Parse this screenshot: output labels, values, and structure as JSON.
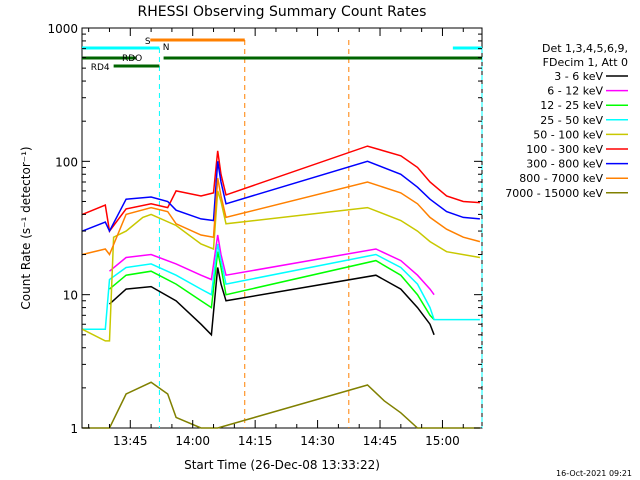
{
  "chart_data": {
    "type": "line",
    "title": "RHESSI Observing Summary Count Rates",
    "xlabel": "Start Time (26-Dec-08 13:33:22)",
    "ylabel": "Count Rate (s⁻¹ detector⁻¹)",
    "y_scale": "log",
    "ylim": [
      1,
      1000
    ],
    "xlim_minutes_after_1330": [
      3.4,
      99.5
    ],
    "x_tick_labels": [
      "13:45",
      "14:00",
      "14:15",
      "14:30",
      "14:45",
      "15:00"
    ],
    "y_tick_labels": [
      "1",
      "10",
      "100",
      "1000"
    ],
    "legend_header": [
      "Det 1,3,4,5,6,9,",
      "FDecim 1, Att 0"
    ],
    "legend_position": "right",
    "grid": false,
    "footer_timestamp": "16-Oct-2021 09:21",
    "flags": [
      {
        "label": "N",
        "color": "#00ffff",
        "segments": [
          [
            3.4,
            22
          ],
          [
            92.5,
            99.5
          ]
        ]
      },
      {
        "label": "RDO",
        "color": "#006400",
        "segments": [
          [
            3.4,
            16.5
          ],
          [
            23,
            99.5
          ]
        ]
      },
      {
        "label": "RD4",
        "color": "#006400",
        "segments": [
          [
            11,
            22
          ]
        ]
      },
      {
        "label": "S",
        "color": "#ff8000",
        "segments": [
          [
            19.8,
            42.5
          ]
        ]
      }
    ],
    "series": [
      {
        "name": "3 - 6 keV",
        "color": "#000000",
        "points": [
          [
            10,
            8.5
          ],
          [
            14,
            11
          ],
          [
            20,
            11.5
          ],
          [
            26,
            9
          ],
          [
            32,
            6
          ],
          [
            34.5,
            5
          ],
          [
            36,
            16
          ],
          [
            36.8,
            12
          ],
          [
            38,
            9
          ],
          [
            74,
            14
          ],
          [
            80,
            11
          ],
          [
            84,
            8
          ],
          [
            87,
            6
          ],
          [
            88,
            5
          ]
        ]
      },
      {
        "name": "6 - 12 keV",
        "color": "#ff00ff",
        "points": [
          [
            10,
            15
          ],
          [
            14,
            19
          ],
          [
            20,
            20
          ],
          [
            26,
            17
          ],
          [
            32,
            14
          ],
          [
            34.5,
            13
          ],
          [
            36,
            28
          ],
          [
            36.8,
            20
          ],
          [
            38,
            14
          ],
          [
            74,
            22
          ],
          [
            80,
            18
          ],
          [
            84,
            14
          ],
          [
            87,
            11
          ],
          [
            88,
            10
          ]
        ]
      },
      {
        "name": "12 - 25 keV",
        "color": "#00ff00",
        "points": [
          [
            10,
            11
          ],
          [
            14,
            14
          ],
          [
            20,
            15
          ],
          [
            26,
            12
          ],
          [
            32,
            9
          ],
          [
            34.5,
            8
          ],
          [
            36,
            21
          ],
          [
            36.8,
            16
          ],
          [
            38,
            10
          ],
          [
            74,
            18
          ],
          [
            80,
            14
          ],
          [
            84,
            10
          ],
          [
            87,
            7
          ],
          [
            88,
            6.5
          ]
        ]
      },
      {
        "name": "25 - 50 keV",
        "color": "#00ffff",
        "points": [
          [
            3.5,
            5.5
          ],
          [
            9,
            5.5
          ],
          [
            10,
            13
          ],
          [
            14,
            16
          ],
          [
            20,
            17
          ],
          [
            26,
            14
          ],
          [
            32,
            11
          ],
          [
            34.5,
            10
          ],
          [
            36,
            24
          ],
          [
            36.8,
            18
          ],
          [
            38,
            12
          ],
          [
            74,
            20
          ],
          [
            80,
            16
          ],
          [
            84,
            12
          ],
          [
            87,
            8
          ],
          [
            88,
            6.5
          ],
          [
            99,
            6.5
          ]
        ]
      },
      {
        "name": "50 - 100 keV",
        "color": "#c8c800",
        "points": [
          [
            3.5,
            5.5
          ],
          [
            9,
            4.5
          ],
          [
            10,
            4.5
          ],
          [
            11,
            27
          ],
          [
            14,
            30
          ],
          [
            18,
            38
          ],
          [
            20,
            40
          ],
          [
            26,
            33
          ],
          [
            32,
            24
          ],
          [
            35,
            22
          ],
          [
            36,
            60
          ],
          [
            36.8,
            50
          ],
          [
            38,
            34
          ],
          [
            72,
            45
          ],
          [
            80,
            36
          ],
          [
            84,
            30
          ],
          [
            87,
            25
          ],
          [
            91,
            21
          ],
          [
            99,
            19
          ]
        ]
      },
      {
        "name": "100 - 300 keV",
        "color": "#ff0000",
        "points": [
          [
            3.5,
            40
          ],
          [
            9,
            47
          ],
          [
            10,
            30
          ],
          [
            14,
            44
          ],
          [
            20,
            48
          ],
          [
            24,
            45
          ],
          [
            26,
            60
          ],
          [
            32,
            55
          ],
          [
            35,
            58
          ],
          [
            36,
            120
          ],
          [
            36.8,
            80
          ],
          [
            38,
            56
          ],
          [
            72,
            130
          ],
          [
            80,
            110
          ],
          [
            84,
            90
          ],
          [
            87,
            70
          ],
          [
            91,
            55
          ],
          [
            95,
            50
          ],
          [
            99,
            49
          ]
        ]
      },
      {
        "name": "300 - 800 keV",
        "color": "#0000ff",
        "points": [
          [
            3.5,
            30
          ],
          [
            9,
            35
          ],
          [
            10,
            30
          ],
          [
            14,
            52
          ],
          [
            20,
            54
          ],
          [
            24,
            50
          ],
          [
            26,
            43
          ],
          [
            32,
            37
          ],
          [
            35,
            36
          ],
          [
            36,
            100
          ],
          [
            36.8,
            70
          ],
          [
            38,
            48
          ],
          [
            72,
            100
          ],
          [
            80,
            80
          ],
          [
            84,
            64
          ],
          [
            87,
            52
          ],
          [
            91,
            42
          ],
          [
            95,
            38
          ],
          [
            99,
            37
          ]
        ]
      },
      {
        "name": "800 - 7000 keV",
        "color": "#ff8000",
        "points": [
          [
            3.5,
            20
          ],
          [
            9,
            22
          ],
          [
            10,
            20
          ],
          [
            14,
            40
          ],
          [
            20,
            45
          ],
          [
            24,
            42
          ],
          [
            26,
            34
          ],
          [
            32,
            28
          ],
          [
            35,
            27
          ],
          [
            36,
            75
          ],
          [
            36.8,
            55
          ],
          [
            38,
            38
          ],
          [
            72,
            70
          ],
          [
            80,
            58
          ],
          [
            84,
            48
          ],
          [
            87,
            38
          ],
          [
            91,
            31
          ],
          [
            95,
            27
          ],
          [
            99,
            25
          ]
        ]
      },
      {
        "name": "7000 - 15000 keV",
        "color": "#808000",
        "points": [
          [
            3.5,
            1
          ],
          [
            9,
            1
          ],
          [
            10,
            1
          ],
          [
            14,
            1.8
          ],
          [
            20,
            2.2
          ],
          [
            24,
            1.8
          ],
          [
            26,
            1.2
          ],
          [
            32,
            1
          ],
          [
            36,
            1
          ],
          [
            72,
            2.1
          ],
          [
            76,
            1.6
          ],
          [
            80,
            1.3
          ],
          [
            84,
            1
          ],
          [
            99,
            1
          ]
        ]
      }
    ],
    "annotations": {
      "front_decim_lines_cyan_min": [
        22,
        99.5
      ],
      "saa_lines_orange_min": [
        42.5,
        67.5
      ],
      "gaps_min": [
        [
          37.5,
          71
        ],
        [
          91,
          92.5
        ]
      ]
    }
  }
}
